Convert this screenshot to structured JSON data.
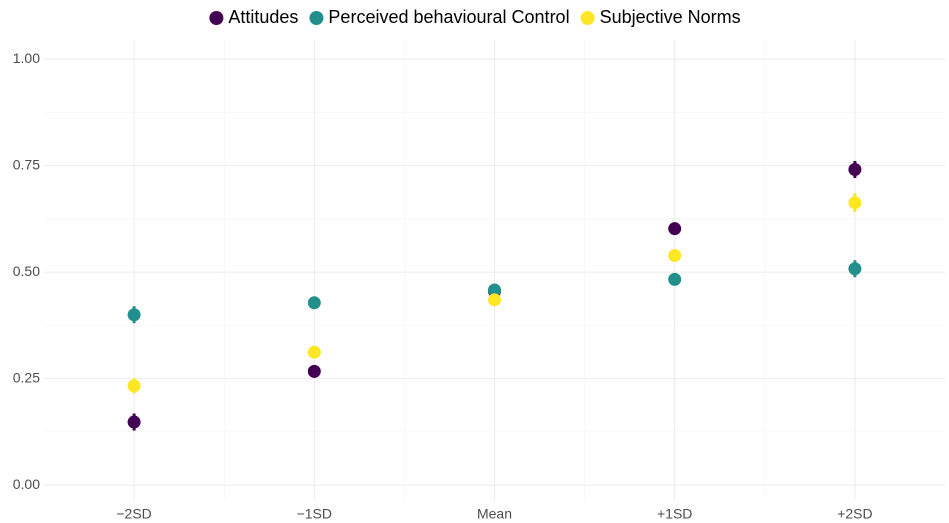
{
  "chart_data": {
    "type": "point",
    "categories": [
      "−2SD",
      "−1SD",
      "Mean",
      "+1SD",
      "+2SD"
    ],
    "series": [
      {
        "name": "Attitudes",
        "color": "#440154",
        "values": [
          0.148,
          0.267,
          0.455,
          0.602,
          0.741
        ],
        "errors": [
          0.02,
          0.015,
          0.01,
          0.01,
          0.02
        ]
      },
      {
        "name": "Perceived behavioural Control",
        "color": "#21908c",
        "values": [
          0.4,
          0.428,
          0.458,
          0.483,
          0.508
        ],
        "errors": [
          0.02,
          0.01,
          0.01,
          0.01,
          0.02
        ]
      },
      {
        "name": "Subjective Norms",
        "color": "#fde725",
        "values": [
          0.233,
          0.312,
          0.435,
          0.539,
          0.663
        ],
        "errors": [
          0.018,
          0.01,
          0.01,
          0.01,
          0.022
        ]
      }
    ],
    "ylim": [
      -0.035,
      1.045
    ],
    "yticks": [
      {
        "value": 0,
        "label": "0.00"
      },
      {
        "value": 0.25,
        "label": "0.25"
      },
      {
        "value": 0.5,
        "label": "0.50"
      },
      {
        "value": 0.75,
        "label": "0.75"
      },
      {
        "value": 1,
        "label": "1.00"
      }
    ],
    "grid": true,
    "legend": "top"
  }
}
